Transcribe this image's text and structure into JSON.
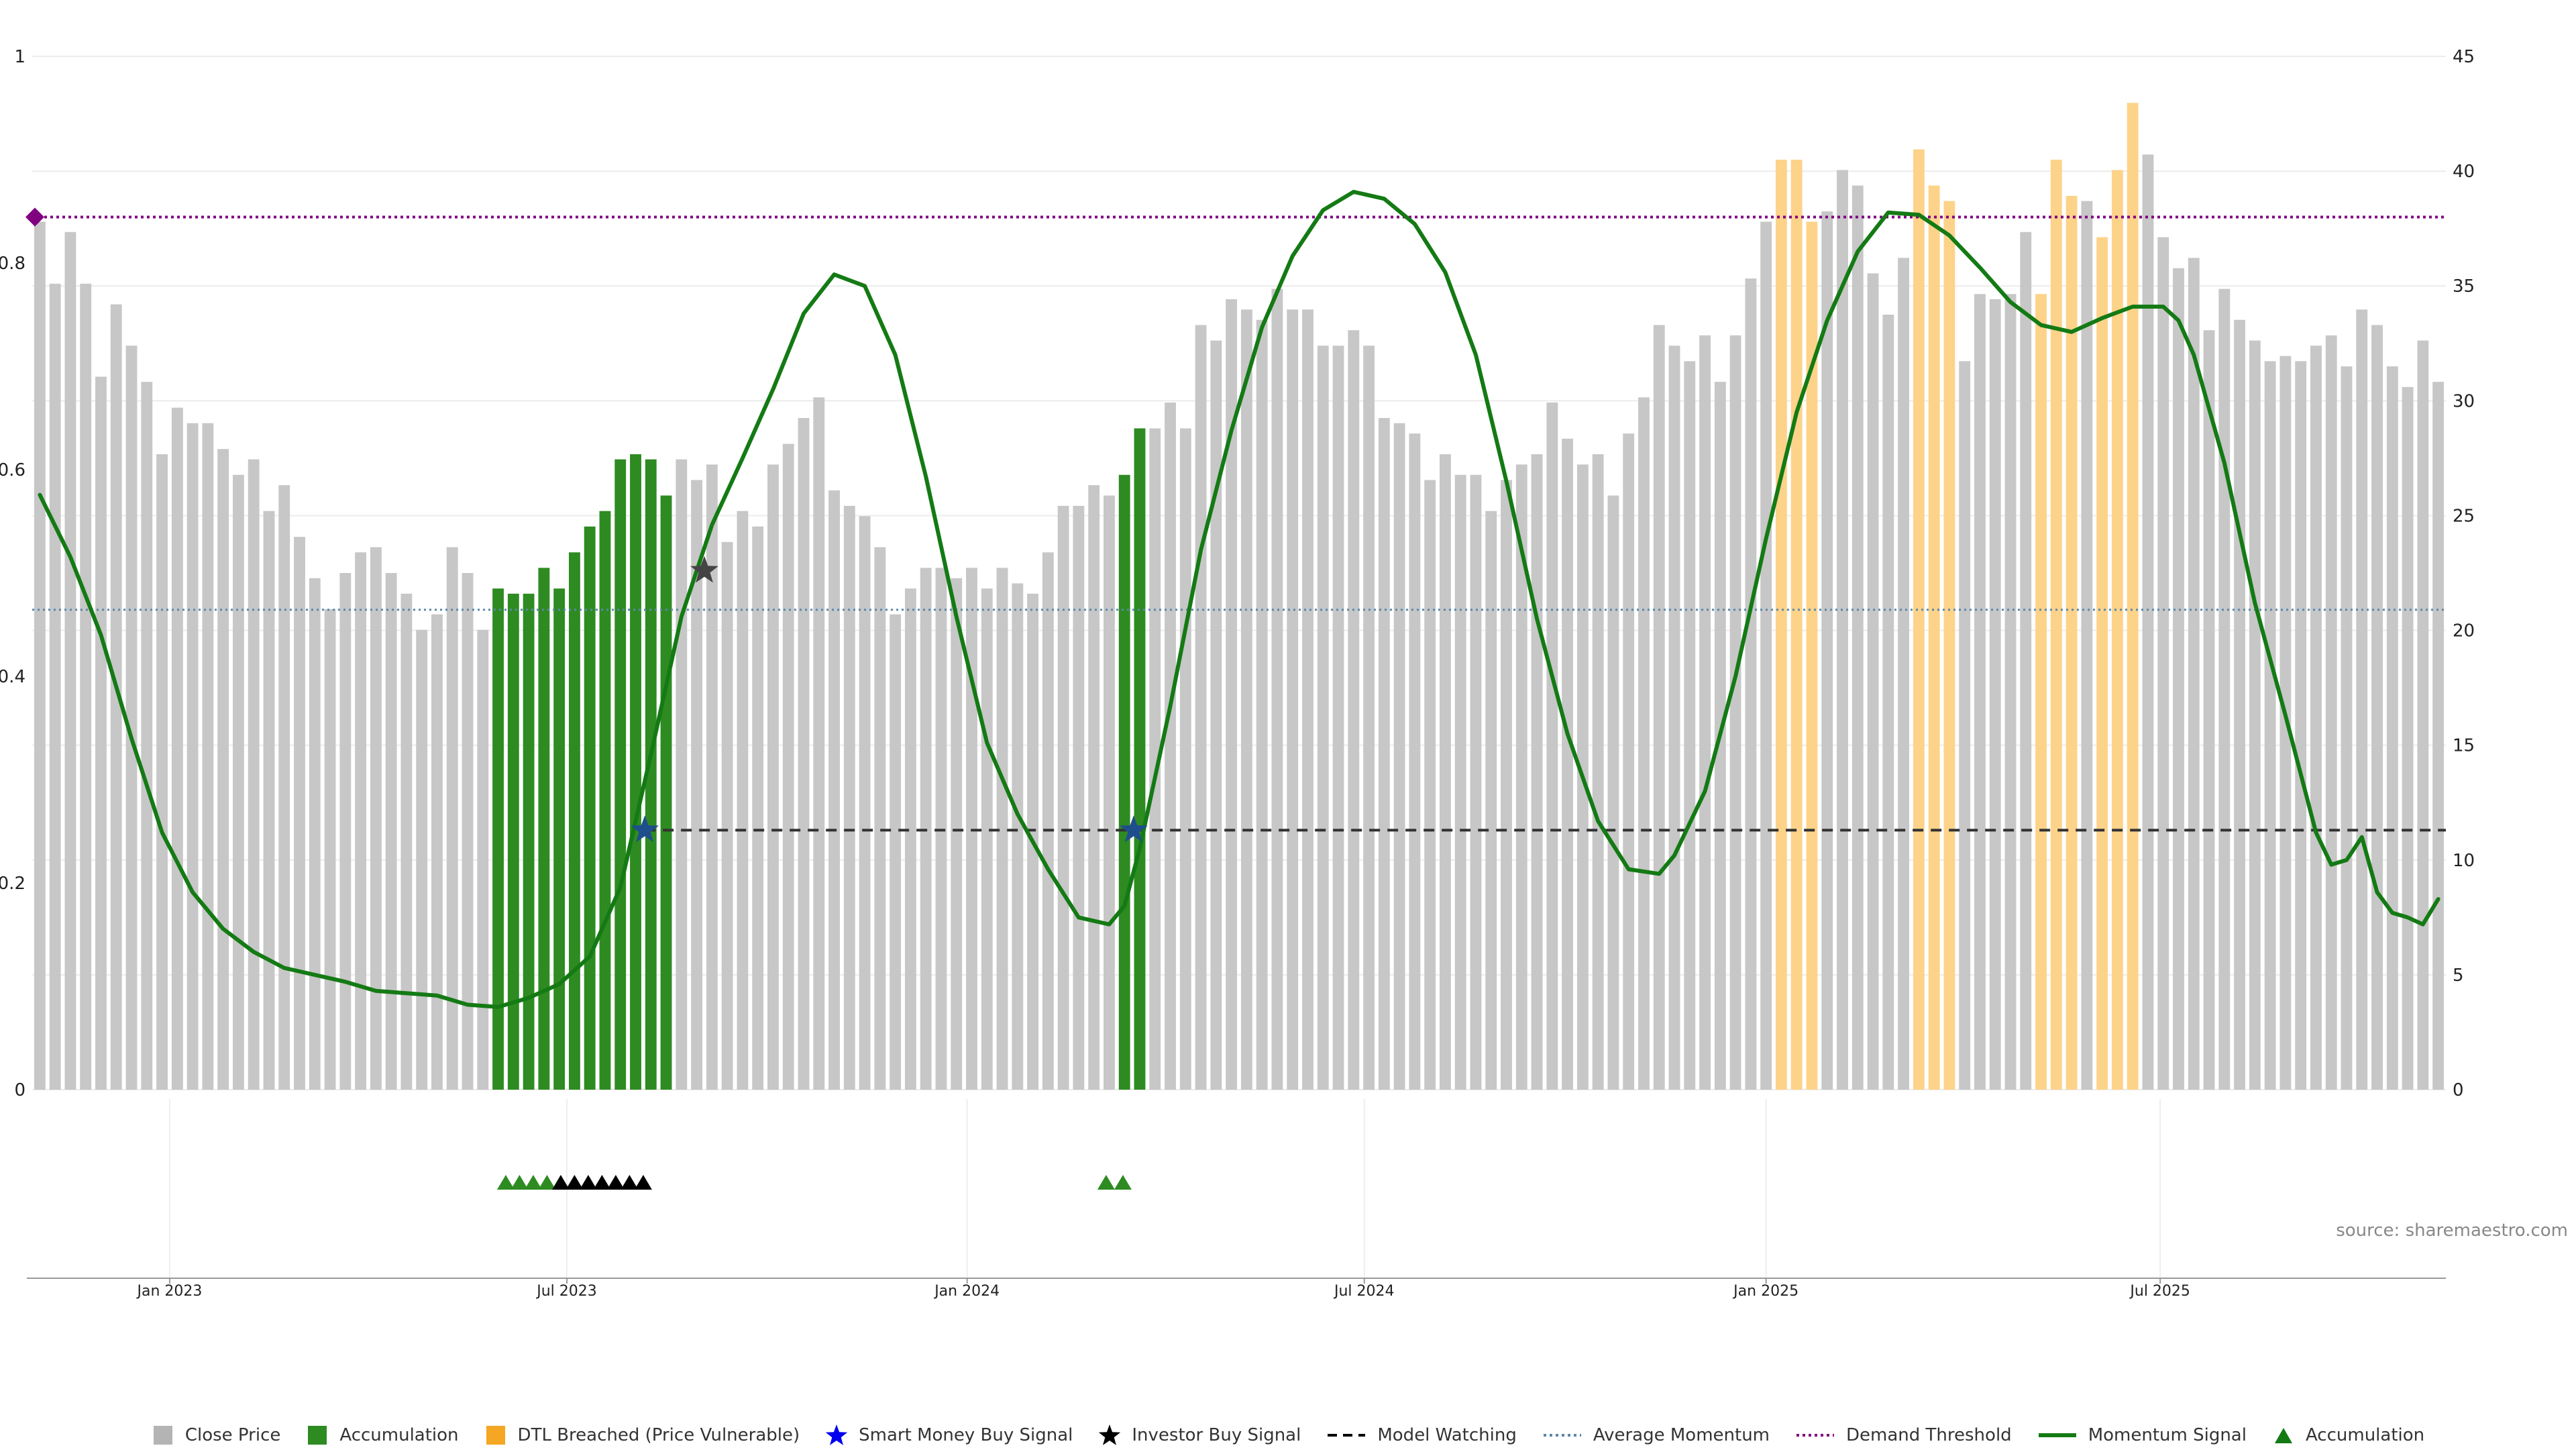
{
  "chart_data": {
    "type": "bar",
    "source": "source: sharemaestro.com",
    "left_axis": {
      "ticks": [
        "1",
        "0.8",
        "0.6",
        "0.4",
        "0.2",
        "0"
      ],
      "values": [
        1,
        0.8,
        0.6,
        0.4,
        0.2,
        0
      ],
      "ylim": [
        0,
        1
      ]
    },
    "right_axis": {
      "ticks": [
        "45",
        "40",
        "35",
        "30",
        "25",
        "20",
        "15",
        "10",
        "5",
        "0"
      ],
      "values": [
        45,
        40,
        35,
        30,
        25,
        20,
        15,
        10,
        5,
        0
      ],
      "ylim": [
        0,
        45
      ]
    },
    "x_ticks": [
      {
        "label": "Jan 2023",
        "index": 8.5
      },
      {
        "label": "Jul 2023",
        "index": 34.5
      },
      {
        "label": "Jan 2024",
        "index": 60.7
      },
      {
        "label": "Jul 2024",
        "index": 86.7
      },
      {
        "label": "Jan 2025",
        "index": 113
      },
      {
        "label": "Jul 2025",
        "index": 138.8
      }
    ],
    "close_price": [
      0.84,
      0.78,
      0.83,
      0.78,
      0.69,
      0.76,
      0.72,
      0.685,
      0.615,
      0.66,
      0.645,
      0.645,
      0.62,
      0.595,
      0.61,
      0.56,
      0.585,
      0.535,
      0.495,
      0.465,
      0.5,
      0.52,
      0.525,
      0.5,
      0.48,
      0.445,
      0.46,
      0.525,
      0.5,
      0.445,
      0.485,
      0.48,
      0.48,
      0.505,
      0.485,
      0.52,
      0.545,
      0.56,
      0.61,
      0.615,
      0.61,
      0.575,
      0.61,
      0.59,
      0.605,
      0.53,
      0.56,
      0.545,
      0.605,
      0.625,
      0.65,
      0.67,
      0.58,
      0.565,
      0.555,
      0.525,
      0.46,
      0.485,
      0.505,
      0.505,
      0.495,
      0.505,
      0.485,
      0.505,
      0.49,
      0.48,
      0.52,
      0.565,
      0.565,
      0.585,
      0.575,
      0.595,
      0.64,
      0.64,
      0.665,
      0.64,
      0.74,
      0.725,
      0.765,
      0.755,
      0.745,
      0.775,
      0.755,
      0.755,
      0.72,
      0.72,
      0.735,
      0.72,
      0.65,
      0.645,
      0.635,
      0.59,
      0.615,
      0.595,
      0.595,
      0.56,
      0.59,
      0.605,
      0.615,
      0.665,
      0.63,
      0.605,
      0.615,
      0.575,
      0.635,
      0.67,
      0.74,
      0.72,
      0.705,
      0.73,
      0.685,
      0.73,
      0.785,
      0.84,
      0.9,
      0.9,
      0.84,
      0.85,
      0.89,
      0.875,
      0.79,
      0.75,
      0.805,
      0.91,
      0.875,
      0.86,
      0.705,
      0.77,
      0.765,
      0.77,
      0.83,
      0.77,
      0.9,
      0.865,
      0.86,
      0.825,
      0.89,
      0.955,
      0.905,
      0.825,
      0.795,
      0.805,
      0.735,
      0.775,
      0.745,
      0.725,
      0.705,
      0.71,
      0.705,
      0.72,
      0.73,
      0.7,
      0.755,
      0.74,
      0.7,
      0.68,
      0.725,
      0.685
    ],
    "accumulation_bars": [
      [
        30,
        41
      ],
      [
        71,
        72
      ]
    ],
    "dtl_bars": [
      [
        114,
        116
      ],
      [
        123,
        125
      ],
      [
        131,
        133
      ],
      [
        135,
        137
      ]
    ],
    "momentum_signal": [
      [
        0,
        25.9
      ],
      [
        2,
        23.2
      ],
      [
        4,
        19.8
      ],
      [
        6,
        15.3
      ],
      [
        8,
        11.2
      ],
      [
        10,
        8.6
      ],
      [
        12,
        7
      ],
      [
        14,
        6
      ],
      [
        16,
        5.3
      ],
      [
        18,
        5
      ],
      [
        20,
        4.7
      ],
      [
        22,
        4.3
      ],
      [
        24,
        4.2
      ],
      [
        26,
        4.1
      ],
      [
        28,
        3.7
      ],
      [
        30,
        3.6
      ],
      [
        32,
        4
      ],
      [
        34,
        4.6
      ],
      [
        36,
        5.8
      ],
      [
        38,
        8.8
      ],
      [
        40,
        14.6
      ],
      [
        42,
        20.6
      ],
      [
        44,
        24.6
      ],
      [
        46,
        27.5
      ],
      [
        48,
        30.5
      ],
      [
        50,
        33.8
      ],
      [
        52,
        35.5
      ],
      [
        54,
        35
      ],
      [
        56,
        32
      ],
      [
        58,
        26.7
      ],
      [
        60,
        20.6
      ],
      [
        62,
        15.1
      ],
      [
        64,
        12
      ],
      [
        66,
        9.6
      ],
      [
        68,
        7.5
      ],
      [
        70,
        7.2
      ],
      [
        71,
        8
      ],
      [
        72,
        10.5
      ],
      [
        74,
        16.7
      ],
      [
        76,
        23.5
      ],
      [
        78,
        28.7
      ],
      [
        80,
        33.2
      ],
      [
        82,
        36.3
      ],
      [
        84,
        38.3
      ],
      [
        86,
        39.1
      ],
      [
        88,
        38.8
      ],
      [
        90,
        37.7
      ],
      [
        92,
        35.6
      ],
      [
        94,
        32
      ],
      [
        96,
        26.5
      ],
      [
        98,
        20.5
      ],
      [
        100,
        15.5
      ],
      [
        102,
        11.7
      ],
      [
        104,
        9.6
      ],
      [
        106,
        9.4
      ],
      [
        107,
        10.2
      ],
      [
        109,
        13
      ],
      [
        111,
        18
      ],
      [
        113,
        24
      ],
      [
        115,
        29.5
      ],
      [
        117,
        33.5
      ],
      [
        119,
        36.5
      ],
      [
        121,
        38.2
      ],
      [
        123,
        38.1
      ],
      [
        125,
        37.2
      ],
      [
        127,
        35.8
      ],
      [
        129,
        34.3
      ],
      [
        131,
        33.3
      ],
      [
        133,
        33
      ],
      [
        135,
        33.6
      ],
      [
        137,
        34.1
      ],
      [
        139,
        34.1
      ],
      [
        140,
        33.5
      ],
      [
        141,
        32
      ],
      [
        143,
        27.3
      ],
      [
        145,
        21.2
      ],
      [
        147,
        16.3
      ],
      [
        149,
        11.2
      ],
      [
        150,
        9.8
      ],
      [
        151,
        10
      ],
      [
        152,
        11
      ],
      [
        153,
        8.6
      ],
      [
        154,
        7.7
      ],
      [
        155,
        7.5
      ],
      [
        156,
        7.2
      ],
      [
        157,
        8.3
      ]
    ],
    "smart_money_buy_signal": [
      {
        "index": 39.6,
        "value": 11.3
      },
      {
        "index": 71.6,
        "value": 11.3
      }
    ],
    "investor_buy_signal": [
      {
        "index": 43.5,
        "value": 22.6
      }
    ],
    "model_watching": {
      "from_index": 39.6,
      "value": 11.3
    },
    "average_momentum": 20.9,
    "demand_threshold": 38,
    "demand_marker_index": 0,
    "accumulation_markers": [
      {
        "index": 30.5,
        "color": "#2e8b22"
      },
      {
        "index": 31.4,
        "color": "#2e8b22"
      },
      {
        "index": 32.3,
        "color": "#2e8b22"
      },
      {
        "index": 33.2,
        "color": "#2e8b22"
      },
      {
        "index": 34.1,
        "color": "#000000"
      },
      {
        "index": 35,
        "color": "#000000"
      },
      {
        "index": 35.9,
        "color": "#000000"
      },
      {
        "index": 36.8,
        "color": "#000000"
      },
      {
        "index": 37.7,
        "color": "#000000"
      },
      {
        "index": 38.6,
        "color": "#000000"
      },
      {
        "index": 39.5,
        "color": "#000000"
      },
      {
        "index": 69.8,
        "color": "#2e8b22"
      },
      {
        "index": 70.9,
        "color": "#2e8b22"
      }
    ],
    "colors": {
      "close": "#c7c7c7",
      "accumulation": "#2e8b22",
      "dtl": "#fdd38a",
      "momentum": "#147a14",
      "avg_momentum": "#5a88aa",
      "demand": "#800080",
      "watching": "#333333",
      "smart_money": "#1f4e8c",
      "investor": "#444444"
    },
    "legend": [
      {
        "label": "Close Price",
        "kind": "square",
        "color": "#b4b4b4"
      },
      {
        "label": "Accumulation",
        "kind": "square",
        "color": "#2e8b22"
      },
      {
        "label": "DTL Breached (Price Vulnerable)",
        "kind": "square",
        "color": "#f5a623"
      },
      {
        "label": "Smart Money Buy Signal",
        "kind": "star",
        "color": "#0000ee"
      },
      {
        "label": "Investor Buy Signal",
        "kind": "star",
        "color": "#000000"
      },
      {
        "label": "Model Watching",
        "kind": "dash",
        "color": "#000000"
      },
      {
        "label": "Average Momentum",
        "kind": "dot",
        "color": "#5a88aa"
      },
      {
        "label": "Demand Threshold",
        "kind": "dot",
        "color": "#800080"
      },
      {
        "label": "Momentum Signal",
        "kind": "line",
        "color": "#147a14"
      },
      {
        "label": "Accumulation",
        "kind": "triangle",
        "color": "#147a14"
      }
    ]
  }
}
